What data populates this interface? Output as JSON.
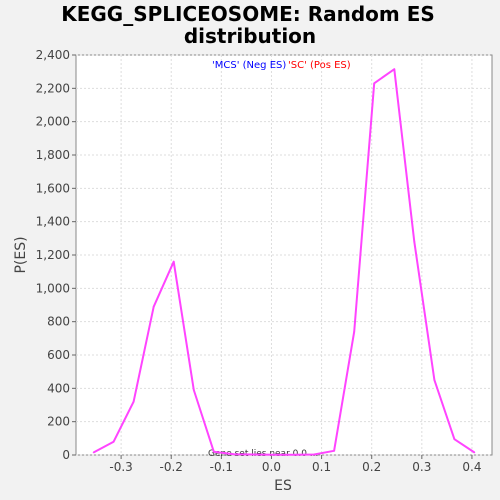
{
  "chart_data": {
    "type": "line",
    "title_line1": "KEGG_SPLICEOSOME: Random ES",
    "title_line2": "distribution",
    "xlabel": "ES",
    "ylabel": "P(ES)",
    "xlim": [
      -0.39,
      0.44
    ],
    "ylim": [
      0,
      2400
    ],
    "x_ticks": [
      "-0.3",
      "-0.2",
      "-0.1",
      "0.0",
      "0.1",
      "0.2",
      "0.3",
      "0.4"
    ],
    "x_tick_values": [
      -0.3,
      -0.2,
      -0.1,
      0.0,
      0.1,
      0.2,
      0.3,
      0.4
    ],
    "y_ticks": [
      "0",
      "200",
      "400",
      "600",
      "800",
      "1,000",
      "1,200",
      "1,400",
      "1,600",
      "1,800",
      "2,000",
      "2,200",
      "2,400"
    ],
    "y_tick_values": [
      0,
      200,
      400,
      600,
      800,
      1000,
      1200,
      1400,
      1600,
      1800,
      2000,
      2200,
      2400
    ],
    "grid": true,
    "legend_neg": "'MCS' (Neg ES)",
    "legend_pos": "'SC' (Pos ES)",
    "legend_neg_color": "#0000ff",
    "legend_pos_color": "#ff0000",
    "annotation": "Gene set lies near 0.0 ...",
    "series": [
      {
        "color": "#ff44ff",
        "x": [
          -0.355,
          -0.315,
          -0.275,
          -0.235,
          -0.195,
          -0.155,
          -0.115,
          -0.075,
          -0.035,
          0.005,
          0.045,
          0.085,
          0.125,
          0.165,
          0.205,
          0.245,
          0.285,
          0.325,
          0.365,
          0.405
        ],
        "y": [
          15,
          80,
          320,
          890,
          1160,
          390,
          20,
          5,
          3,
          2,
          2,
          3,
          25,
          740,
          2230,
          2315,
          1280,
          450,
          95,
          15
        ]
      }
    ]
  }
}
